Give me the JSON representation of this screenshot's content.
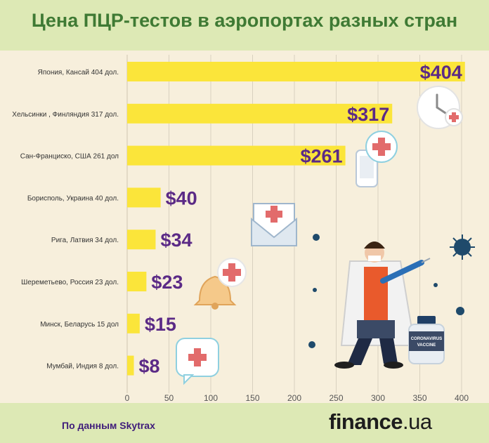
{
  "title": "Цена ПЦР-тестов в аэропортах разных стран",
  "footer": {
    "source": "По данным Skytrax",
    "brand": "finance",
    "brand_suffix": ".ua"
  },
  "illustration": {
    "vaccine_label": "CORONAVIRUS\nVACCINE"
  },
  "colors": {
    "bar": "#fbe53a",
    "value_label": "#5b2a86",
    "grid": "#d9d1bf",
    "header_bg": "#dde9b5",
    "title": "#3f7a34"
  },
  "chart_data": {
    "type": "bar",
    "orientation": "horizontal",
    "categories": [
      "Япония, Кансай 404 дол.",
      "Хельсинки , Финляндия 317 дол.",
      "Сан-Франциско, США 261 дол",
      "Борисполь, Украина 40 дол.",
      "Рига, Латвия 34 дол.",
      "Шереметьево, Россия 23 дол.",
      "Минск, Беларусь 15 дол",
      "Мумбай, Индия 8 дол."
    ],
    "values": [
      404,
      317,
      261,
      40,
      34,
      23,
      15,
      8
    ],
    "data_labels": [
      "$404",
      "$317",
      "$261",
      "$40",
      "$34",
      "$23",
      "$15",
      "$8"
    ],
    "xlim": [
      0,
      400
    ],
    "xticks": [
      0,
      50,
      100,
      150,
      200,
      250,
      300,
      350,
      400
    ],
    "grid": true
  }
}
